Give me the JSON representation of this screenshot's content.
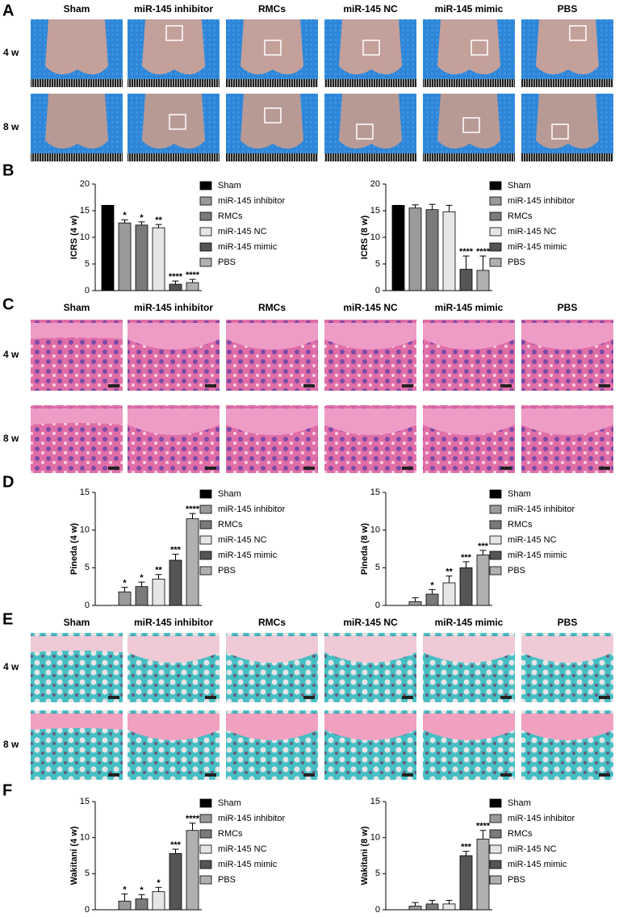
{
  "panel_labels": [
    "A",
    "B",
    "C",
    "D",
    "E",
    "F"
  ],
  "image_panels": [
    {
      "columns": [
        "Sham",
        "miR-145 inhibitor",
        "RMCs",
        "miR-145 NC",
        "miR-145 mimic",
        "PBS"
      ],
      "rows": [
        "4 w",
        "8 w"
      ]
    },
    {
      "columns": [
        "Sham",
        "miR-145 inhibitor",
        "RMCs",
        "miR-145 NC",
        "miR-145 mimic",
        "PBS"
      ],
      "rows": [
        "4 w",
        "8 w"
      ]
    },
    {
      "columns": [
        "Sham",
        "miR-145 inhibitor",
        "RMCs",
        "miR-145 NC",
        "miR-145 mimic",
        "PBS"
      ],
      "rows": [
        "4 w",
        "8 w"
      ]
    }
  ],
  "chart_data": [
    {
      "type": "bar",
      "ylabel": "ICRS (4 w)",
      "categories": [
        "Sham",
        "miR-145 inhibitor",
        "RMCs",
        "miR-145 NC",
        "miR-145 mimic",
        "PBS"
      ],
      "values": [
        16,
        12.7,
        12.3,
        11.8,
        1.2,
        1.5
      ],
      "errors": [
        0,
        0.6,
        0.6,
        0.6,
        0.6,
        0.6
      ],
      "annotations": [
        null,
        "*",
        "*",
        "**",
        "****",
        "****"
      ],
      "colors": [
        "#000000",
        "#9a9a9a",
        "#7a7a7a",
        "#e6e6e6",
        "#555555",
        "#b0b0b0"
      ],
      "ylim": [
        0,
        20
      ],
      "yticks": [
        0,
        5,
        10,
        15,
        20
      ]
    },
    {
      "type": "bar",
      "ylabel": "ICRS (8 w)",
      "categories": [
        "Sham",
        "miR-145 inhibitor",
        "RMCs",
        "miR-145 NC",
        "miR-145 mimic",
        "PBS"
      ],
      "values": [
        16,
        15.5,
        15.2,
        14.8,
        4,
        3.8
      ],
      "errors": [
        0,
        0.6,
        1,
        1.2,
        2.5,
        2.7
      ],
      "annotations": [
        null,
        null,
        null,
        null,
        "****",
        "****"
      ],
      "colors": [
        "#000000",
        "#9a9a9a",
        "#7a7a7a",
        "#e6e6e6",
        "#555555",
        "#b0b0b0"
      ],
      "ylim": [
        0,
        20
      ],
      "yticks": [
        0,
        5,
        10,
        15,
        20
      ]
    },
    {
      "type": "bar",
      "ylabel": "Pineda (4 w)",
      "categories": [
        "Sham",
        "miR-145 inhibitor",
        "RMCs",
        "miR-145 NC",
        "miR-145 mimic",
        "PBS"
      ],
      "values": [
        0,
        1.8,
        2.5,
        3.5,
        6,
        11.5
      ],
      "errors": [
        0,
        0.6,
        0.6,
        0.6,
        0.8,
        0.7
      ],
      "annotations": [
        null,
        "*",
        "*",
        "**",
        "***",
        "****"
      ],
      "colors": [
        "#000000",
        "#9a9a9a",
        "#7a7a7a",
        "#e6e6e6",
        "#555555",
        "#b0b0b0"
      ],
      "ylim": [
        0,
        15
      ],
      "yticks": [
        0,
        5,
        10,
        15
      ]
    },
    {
      "type": "bar",
      "ylabel": "Pineda (8 w)",
      "categories": [
        "Sham",
        "miR-145 inhibitor",
        "RMCs",
        "miR-145 NC",
        "miR-145 mimic",
        "PBS"
      ],
      "values": [
        0,
        0.5,
        1.5,
        3,
        5,
        6.7
      ],
      "errors": [
        0,
        0.5,
        0.6,
        0.9,
        0.8,
        0.6
      ],
      "annotations": [
        null,
        null,
        "*",
        "**",
        "***",
        "***"
      ],
      "colors": [
        "#000000",
        "#9a9a9a",
        "#7a7a7a",
        "#e6e6e6",
        "#555555",
        "#b0b0b0"
      ],
      "ylim": [
        0,
        15
      ],
      "yticks": [
        0,
        5,
        10,
        15
      ]
    },
    {
      "type": "bar",
      "ylabel": "Wakitani (4 w)",
      "categories": [
        "Sham",
        "miR-145 inhibitor",
        "RMCs",
        "miR-145 NC",
        "miR-145 mimic",
        "PBS"
      ],
      "values": [
        0,
        1.2,
        1.5,
        2.5,
        7.8,
        11
      ],
      "errors": [
        0,
        1,
        0.6,
        0.6,
        0.6,
        1
      ],
      "annotations": [
        null,
        "*",
        "*",
        "*",
        "***",
        "****"
      ],
      "colors": [
        "#000000",
        "#9a9a9a",
        "#7a7a7a",
        "#e6e6e6",
        "#555555",
        "#b0b0b0"
      ],
      "ylim": [
        0,
        15
      ],
      "yticks": [
        0,
        5,
        10,
        15
      ]
    },
    {
      "type": "bar",
      "ylabel": "Wakitani (8 w)",
      "categories": [
        "Sham",
        "miR-145 inhibitor",
        "RMCs",
        "miR-145 NC",
        "miR-145 mimic",
        "PBS"
      ],
      "values": [
        0,
        0.5,
        0.8,
        0.8,
        7.5,
        9.8
      ],
      "errors": [
        0,
        0.5,
        0.5,
        0.5,
        0.6,
        1.2
      ],
      "annotations": [
        null,
        null,
        null,
        null,
        "***",
        "****"
      ],
      "colors": [
        "#000000",
        "#9a9a9a",
        "#7a7a7a",
        "#e6e6e6",
        "#555555",
        "#b0b0b0"
      ],
      "ylim": [
        0,
        15
      ],
      "yticks": [
        0,
        5,
        10,
        15
      ]
    }
  ]
}
